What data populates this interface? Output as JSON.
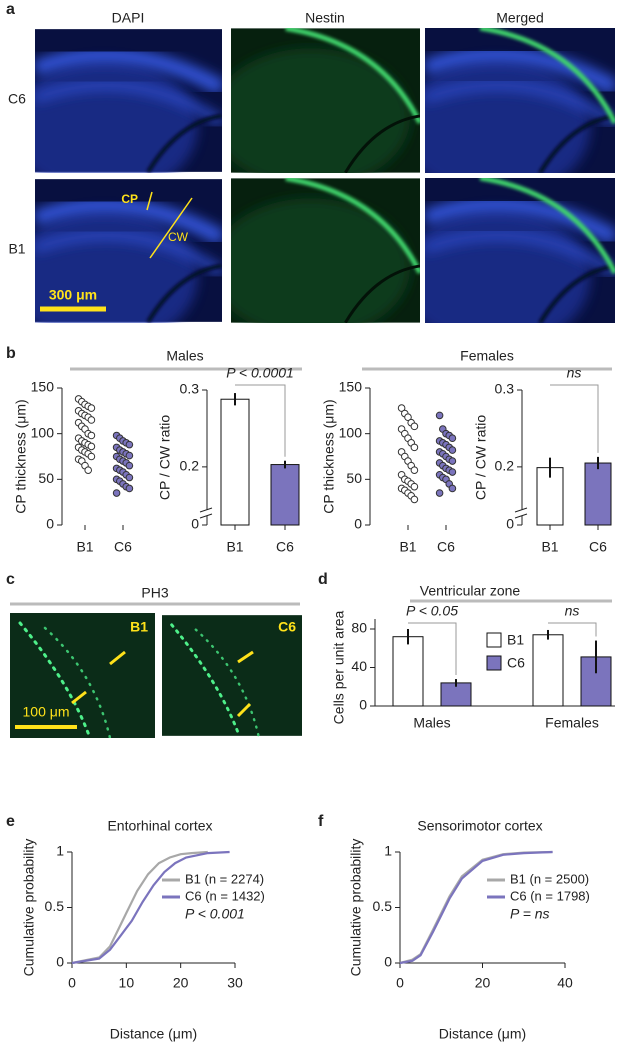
{
  "figure": {
    "panel_labels": [
      "a",
      "b",
      "c",
      "d",
      "e",
      "f"
    ],
    "a": {
      "columns": [
        "DAPI",
        "Nestin",
        "Merged"
      ],
      "rows": [
        "C6",
        "B1"
      ],
      "annotations": [
        "CP",
        "CW"
      ],
      "scale_bar": "300 μm"
    },
    "b": {
      "groups": [
        "Males",
        "Females"
      ]
    },
    "c": {
      "title": "PH3",
      "images": [
        "B1",
        "C6"
      ],
      "scale_bar": "100 μm"
    }
  },
  "chart_data": [
    {
      "type": "strip",
      "ylabel": "CP thickness (μm)",
      "categories": [
        "B1",
        "C6"
      ],
      "values": [
        [
          138,
          135,
          132,
          130,
          128,
          125,
          122,
          120,
          118,
          115,
          112,
          108,
          105,
          100,
          98,
          95,
          92,
          90,
          88,
          86,
          85,
          82,
          80,
          78,
          75,
          72,
          70,
          65,
          60
        ],
        [
          98,
          95,
          92,
          90,
          88,
          85,
          82,
          80,
          78,
          76,
          75,
          72,
          70,
          68,
          65,
          62,
          60,
          58,
          55,
          52,
          50,
          48,
          45,
          42,
          40,
          35
        ]
      ],
      "markers": [
        "open",
        "filled"
      ],
      "color": "#7b74bd",
      "ylim": [
        0,
        150
      ],
      "yticks": [
        0,
        50,
        100,
        150
      ]
    },
    {
      "type": "bar",
      "ylabel": "CP / CW ratio",
      "categories": [
        "B1",
        "C6"
      ],
      "values": [
        0.288,
        0.203
      ],
      "errors": [
        0.008,
        0.005
      ],
      "colors": [
        "#ffffff",
        "#7b74bd"
      ],
      "ylim": [
        0.14,
        0.3
      ],
      "yticks": [
        0,
        0.2,
        0.3
      ],
      "axis_break": true,
      "annotation": "P < 0.0001"
    },
    {
      "type": "strip",
      "ylabel": "CP thickness (μm)",
      "categories": [
        "B1",
        "C6"
      ],
      "values": [
        [
          128,
          122,
          118,
          112,
          108,
          105,
          100,
          95,
          90,
          85,
          80,
          75,
          70,
          65,
          60,
          55,
          50,
          48,
          45,
          42,
          40,
          38,
          35,
          32,
          28
        ],
        [
          120,
          105,
          100,
          98,
          95,
          92,
          90,
          88,
          85,
          82,
          80,
          78,
          75,
          72,
          70,
          68,
          65,
          62,
          60,
          58,
          55,
          52,
          50,
          45,
          40,
          35
        ]
      ],
      "markers": [
        "open",
        "filled"
      ],
      "color": "#7b74bd",
      "ylim": [
        0,
        150
      ],
      "yticks": [
        0,
        50,
        100,
        150
      ]
    },
    {
      "type": "bar",
      "ylabel": "CP / CW ratio",
      "categories": [
        "B1",
        "C6"
      ],
      "values": [
        0.199,
        0.205
      ],
      "errors": [
        0.013,
        0.008
      ],
      "colors": [
        "#ffffff",
        "#7b74bd"
      ],
      "ylim": [
        0.14,
        0.3
      ],
      "yticks": [
        0,
        0.2,
        0.3
      ],
      "axis_break": true,
      "annotation": "ns"
    },
    {
      "type": "grouped_bar",
      "title": "Ventricular zone",
      "ylabel": "Cells per unit area",
      "categories": [
        "Males",
        "Females"
      ],
      "series": [
        {
          "name": "B1",
          "color": "#ffffff",
          "values": [
            72,
            74
          ],
          "errors": [
            8,
            5
          ]
        },
        {
          "name": "C6",
          "color": "#7b74bd",
          "values": [
            24,
            51
          ],
          "errors": [
            4,
            17
          ]
        }
      ],
      "annotations": [
        "P < 0.05",
        "ns"
      ],
      "ylim": [
        0,
        80
      ],
      "yticks": [
        0,
        40,
        80
      ]
    },
    {
      "type": "line",
      "title": "Entorhinal cortex",
      "xlabel": "Distance (μm)",
      "ylabel": "Cumulative probability",
      "series": [
        {
          "name": "B1 (n = 2274)",
          "color": "#a8a8a8",
          "x": [
            0,
            5,
            7,
            9,
            10,
            12,
            14,
            16,
            18,
            20,
            22,
            25
          ],
          "values": [
            0,
            0.05,
            0.15,
            0.35,
            0.45,
            0.65,
            0.8,
            0.9,
            0.95,
            0.98,
            0.99,
            1
          ]
        },
        {
          "name": "C6 (n = 1432)",
          "color": "#7b74bd",
          "x": [
            0,
            5,
            7,
            9,
            11,
            13,
            15,
            17,
            19,
            21,
            25,
            29
          ],
          "values": [
            0,
            0.04,
            0.12,
            0.25,
            0.38,
            0.55,
            0.7,
            0.82,
            0.9,
            0.95,
            0.99,
            1
          ]
        }
      ],
      "annotation": "P < 0.001",
      "xlim": [
        0,
        30
      ],
      "ylim": [
        0,
        1
      ],
      "xticks": [
        0,
        10,
        20,
        30
      ],
      "yticks": [
        0,
        0.5,
        1
      ]
    },
    {
      "type": "line",
      "title": "Sensorimotor cortex",
      "xlabel": "Distance (μm)",
      "ylabel": "Cumulative probability",
      "series": [
        {
          "name": "B1 (n = 2500)",
          "color": "#a8a8a8",
          "x": [
            0,
            3,
            5,
            8,
            10,
            12,
            15,
            20,
            25,
            30,
            37
          ],
          "values": [
            0,
            0.03,
            0.08,
            0.3,
            0.45,
            0.6,
            0.78,
            0.93,
            0.98,
            0.995,
            1
          ]
        },
        {
          "name": "C6 (n = 1798)",
          "color": "#7b74bd",
          "x": [
            0,
            3,
            5,
            8,
            10,
            12,
            15,
            20,
            25,
            30,
            37
          ],
          "values": [
            0,
            0.02,
            0.07,
            0.28,
            0.43,
            0.58,
            0.76,
            0.92,
            0.975,
            0.99,
            1
          ]
        }
      ],
      "annotation": "P = ns",
      "xlim": [
        0,
        40
      ],
      "ylim": [
        0,
        1
      ],
      "xticks": [
        0,
        20,
        40
      ],
      "yticks": [
        0,
        0.5,
        1
      ]
    }
  ]
}
